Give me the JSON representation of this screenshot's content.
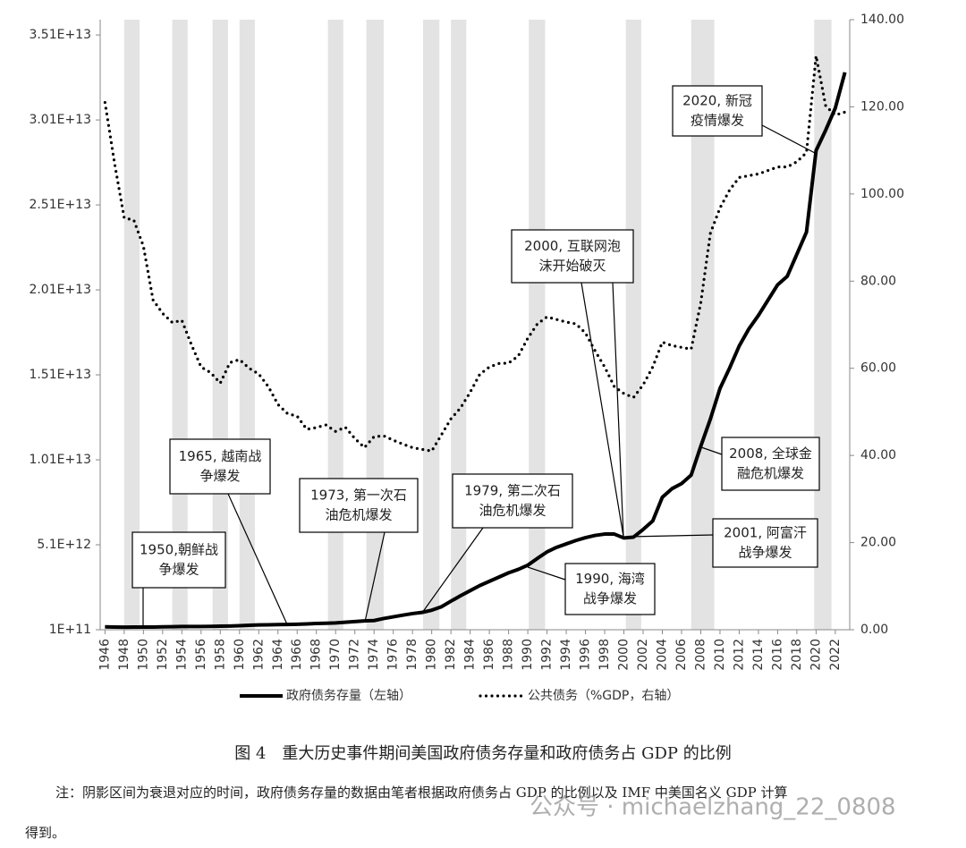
{
  "chart_data": {
    "type": "line",
    "x": [
      1946,
      1947,
      1948,
      1949,
      1950,
      1951,
      1952,
      1953,
      1954,
      1955,
      1956,
      1957,
      1958,
      1959,
      1960,
      1961,
      1962,
      1963,
      1964,
      1965,
      1966,
      1967,
      1968,
      1969,
      1970,
      1971,
      1972,
      1973,
      1974,
      1975,
      1976,
      1977,
      1978,
      1979,
      1980,
      1981,
      1982,
      1983,
      1984,
      1985,
      1986,
      1987,
      1988,
      1989,
      1990,
      1991,
      1992,
      1993,
      1994,
      1995,
      1996,
      1997,
      1998,
      1999,
      2000,
      2001,
      2002,
      2003,
      2004,
      2005,
      2006,
      2007,
      2008,
      2009,
      2010,
      2011,
      2012,
      2013,
      2014,
      2015,
      2016,
      2017,
      2018,
      2019,
      2020,
      2021,
      2022,
      2023
    ],
    "xlim": [
      1945.5,
      2023.5
    ],
    "xticks": [
      1946,
      1948,
      1950,
      1952,
      1954,
      1956,
      1958,
      1960,
      1962,
      1964,
      1966,
      1968,
      1970,
      1972,
      1974,
      1976,
      1978,
      1980,
      1982,
      1984,
      1986,
      1988,
      1990,
      1992,
      1994,
      1996,
      1998,
      2000,
      2002,
      2004,
      2006,
      2008,
      2010,
      2012,
      2014,
      2016,
      2018,
      2020,
      2022
    ],
    "ylim": [
      100000000000,
      36000000000000
    ],
    "yticks": [
      {
        "value": 100000000000,
        "label": "1E+11"
      },
      {
        "value": 5100000000000,
        "label": "5.1E+12"
      },
      {
        "value": 10100000000000,
        "label": "1.01E+13"
      },
      {
        "value": 15100000000000,
        "label": "1.51E+13"
      },
      {
        "value": 20100000000000,
        "label": "2.01E+13"
      },
      {
        "value": 25100000000000,
        "label": "2.51E+13"
      },
      {
        "value": 30100000000000,
        "label": "3.01E+13"
      },
      {
        "value": 35100000000000,
        "label": "3.51E+13"
      }
    ],
    "y2lim": [
      0,
      140
    ],
    "y2ticks": [
      {
        "value": 0,
        "label": "0.00"
      },
      {
        "value": 20,
        "label": "20.00"
      },
      {
        "value": 40,
        "label": "40.00"
      },
      {
        "value": 60,
        "label": "60.00"
      },
      {
        "value": 80,
        "label": "80.00"
      },
      {
        "value": 100,
        "label": "100.00"
      },
      {
        "value": 120,
        "label": "120.00"
      },
      {
        "value": 140,
        "label": "140.00"
      }
    ],
    "grid": false,
    "shaded_periods": [
      [
        1948,
        1949.6
      ],
      [
        1953,
        1954.6
      ],
      [
        1957.2,
        1958.8
      ],
      [
        1960,
        1961.6
      ],
      [
        1969.2,
        1970.8
      ],
      [
        1973.2,
        1975
      ],
      [
        1979.1,
        1980.8
      ],
      [
        1982,
        1983.6
      ],
      [
        1990.1,
        1991.8
      ],
      [
        2000.2,
        2001.8
      ],
      [
        2007,
        2009.4
      ],
      [
        2019.8,
        2021.6
      ]
    ],
    "shade_color": "#e3e3e3",
    "series": [
      {
        "name": "政府债务存量（左轴）",
        "color": "#000000",
        "style": "solid",
        "values": [
          270000000000,
          260000000000,
          250000000000,
          260000000000,
          260000000000,
          260000000000,
          270000000000,
          280000000000,
          290000000000,
          290000000000,
          290000000000,
          300000000000,
          310000000000,
          320000000000,
          340000000000,
          360000000000,
          380000000000,
          390000000000,
          400000000000,
          410000000000,
          420000000000,
          440000000000,
          470000000000,
          480000000000,
          500000000000,
          540000000000,
          580000000000,
          620000000000,
          640000000000,
          760000000000,
          860000000000,
          960000000000,
          1050000000000,
          1120000000000,
          1250000000000,
          1450000000000,
          1780000000000,
          2100000000000,
          2400000000000,
          2700000000000,
          2950000000000,
          3200000000000,
          3450000000000,
          3650000000000,
          3900000000000,
          4300000000000,
          4680000000000,
          4950000000000,
          5150000000000,
          5350000000000,
          5520000000000,
          5650000000000,
          5730000000000,
          5730000000000,
          5500000000000,
          5550000000000,
          6000000000000,
          6500000000000,
          7900000000000,
          8400000000000,
          8700000000000,
          9200000000000,
          10900000000000,
          12500000000000,
          14300000000000,
          15500000000000,
          16800000000000,
          17800000000000,
          18600000000000,
          19500000000000,
          20400000000000,
          20900000000000,
          22200000000000,
          23500000000000,
          28300000000000,
          29500000000000,
          30800000000000,
          32900000000000
        ]
      },
      {
        "name": "公共债务（%GDP，右轴）",
        "color": "#000000",
        "style": "dotted",
        "axis": "y2",
        "values": [
          121,
          107,
          94.5,
          94,
          88,
          75.7,
          72.6,
          70.5,
          71,
          65.4,
          60.3,
          59,
          56.6,
          61.3,
          62,
          60,
          58.7,
          55.8,
          51.7,
          49.6,
          49,
          46,
          46.4,
          47,
          45.5,
          46.5,
          43.9,
          41.8,
          44.3,
          44.5,
          43.5,
          42.6,
          41.8,
          41.4,
          41,
          44.7,
          48.4,
          50.9,
          54.5,
          58.6,
          60.3,
          61.1,
          61.2,
          62.8,
          66.9,
          70.2,
          71.8,
          71.2,
          70.6,
          70.2,
          68.1,
          64,
          60.3,
          55.8,
          54.2,
          53.3,
          56.2,
          60.3,
          66,
          65.2,
          64.8,
          64.4,
          75,
          91,
          96.8,
          100.9,
          103.8,
          104.2,
          104.6,
          105.4,
          106.2,
          106.2,
          107.4,
          109.5,
          131.7,
          120.2,
          118.1,
          118.8
        ]
      }
    ],
    "annotations": [
      {
        "lines": [
          "1950,朝鲜战",
          "争爆发"
        ]
      },
      {
        "lines": [
          "1965, 越南战",
          "争爆发"
        ]
      },
      {
        "lines": [
          "1973, 第一次石",
          "油危机爆发"
        ]
      },
      {
        "lines": [
          "1979, 第二次石",
          "油危机爆发"
        ]
      },
      {
        "lines": [
          "2000, 互联网泡",
          "沫开始破灭"
        ]
      },
      {
        "lines": [
          "2001, 阿富汗",
          "战争爆发"
        ]
      },
      {
        "lines": [
          "1990, 海湾",
          "战争爆发"
        ]
      },
      {
        "lines": [
          "2008, 全球金",
          "融危机爆发"
        ]
      },
      {
        "lines": [
          "2020, 新冠",
          "疫情爆发"
        ]
      }
    ]
  },
  "caption": "图 4　重大历史事件期间美国政府债务存量和政府债务占 GDP 的比例",
  "note": [
    "注：阴影区间为衰退对应的时间，政府债务存量的数据由笔者根据政府债务占 GDP 的比例以及 IMF 中美国名义 GDP 计算",
    "得到。"
  ],
  "watermark": "公众号 · michaelzhang_22_0808"
}
